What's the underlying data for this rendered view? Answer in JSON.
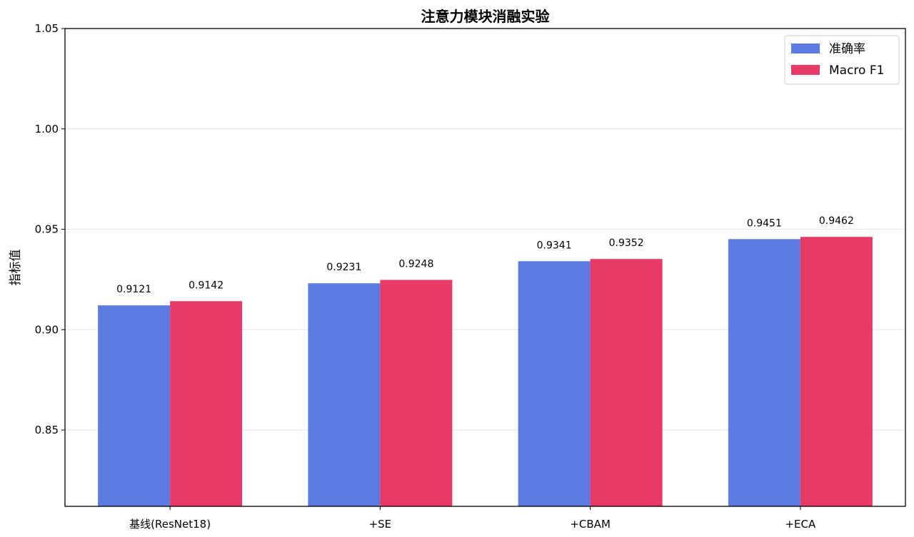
{
  "chart_data": {
    "type": "bar",
    "title": "注意力模块消融实验",
    "xlabel": "",
    "ylabel": "指标值",
    "categories": [
      "基线(ResNet18)",
      "+SE",
      "+CBAM",
      "+ECA"
    ],
    "series": [
      {
        "name": "准确率",
        "color": "#5b7be0",
        "values": [
          0.9121,
          0.9231,
          0.9341,
          0.9451
        ],
        "labels": [
          "0.9121",
          "0.9231",
          "0.9341",
          "0.9451"
        ]
      },
      {
        "name": "Macro F1",
        "color": "#e83a65",
        "values": [
          0.9142,
          0.9248,
          0.9352,
          0.9462
        ],
        "labels": [
          "0.9142",
          "0.9248",
          "0.9352",
          "0.9462"
        ]
      }
    ],
    "ylim": [
      0.812,
      1.05
    ],
    "yticks": [
      "0.85",
      "0.90",
      "0.95",
      "1.00",
      "1.05"
    ],
    "grid": "horizontal",
    "legend_position": "top-right"
  }
}
